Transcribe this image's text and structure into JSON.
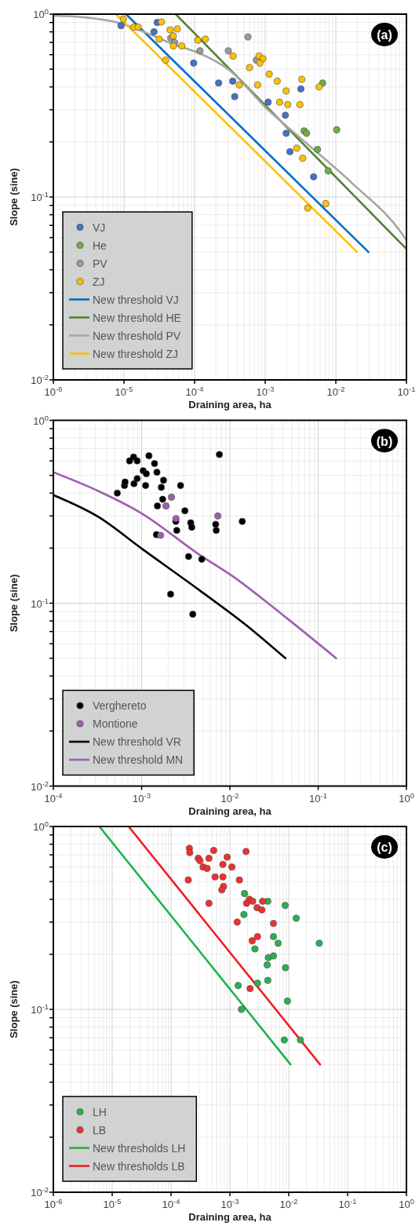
{
  "chart_data": [
    {
      "type": "scatter",
      "xlabel": "Draining area, ha",
      "ylabel": "Slope (sine)",
      "annotations": [
        "(a)"
      ],
      "log": "xy",
      "grid": true,
      "legend": "bottom left",
      "xlim": [
        1e-06,
        0.1
      ],
      "ylim": [
        0.01,
        1
      ],
      "xticks": [
        {
          "value": 1e-06,
          "label": "10$^{-6}$"
        },
        {
          "value": 1e-05,
          "label": "10$^{-5}$"
        },
        {
          "value": 0.0001,
          "label": "10$^{-4}$"
        },
        {
          "value": 0.001,
          "label": "10$^{-3}$"
        },
        {
          "value": 0.01,
          "label": "10$^{-2}$"
        },
        {
          "value": 0.1,
          "label": "10$^{-1}$"
        }
      ],
      "yticks": [
        {
          "value": 0.01,
          "label": "10$^{-2}$"
        },
        {
          "value": 0.02,
          "label": null
        },
        {
          "value": 0.03,
          "label": null
        },
        {
          "value": 0.04,
          "label": null
        },
        {
          "value": 0.05,
          "label": null
        },
        {
          "value": 0.06,
          "label": null
        },
        {
          "value": 0.07,
          "label": null
        },
        {
          "value": 0.08,
          "label": null
        },
        {
          "value": 0.09,
          "label": null
        },
        {
          "value": 0.1,
          "label": "10$^{-1}$"
        },
        {
          "value": 0.2,
          "label": null
        },
        {
          "value": 0.3,
          "label": null
        },
        {
          "value": 0.4,
          "label": null
        },
        {
          "value": 0.5,
          "label": null
        },
        {
          "value": 0.6,
          "label": null
        },
        {
          "value": 0.7,
          "label": null
        },
        {
          "value": 0.8,
          "label": null
        },
        {
          "value": 0.9,
          "label": null
        },
        {
          "value": 1,
          "label": "10$^{0}$"
        }
      ],
      "series": [
        {
          "name": "VJ",
          "marker": "circle",
          "color": "#4472c4",
          "x": [
            9.1e-06,
            2.95e-05,
            2.66e-05,
            9.7e-05,
            0.000219,
            0.000347,
            0.00037,
            0.0011,
            0.00193,
            0.00198,
            0.00224,
            0.0032,
            0.00485
          ],
          "values": [
            0.865,
            0.9,
            0.8,
            0.54,
            0.42,
            0.43,
            0.354,
            0.33,
            0.28,
            0.223,
            0.177,
            0.39,
            0.129
          ]
        },
        {
          "name": "He",
          "marker": "circle",
          "color": "#70ad47",
          "x": [
            0.00355,
            0.00385,
            0.0065,
            0.0103,
            0.0055,
            0.0078
          ],
          "values": [
            0.23,
            0.223,
            0.42,
            0.233,
            0.182,
            0.139
          ]
        },
        {
          "name": "PV",
          "marker": "circle",
          "color": "#9a9a9a",
          "x": [
            4.6e-05,
            5.2e-05,
            0.000119,
            0.0003,
            0.00057,
            0.00075
          ],
          "values": [
            0.74,
            0.7,
            0.63,
            0.63,
            0.75,
            0.56
          ]
        },
        {
          "name": "ZJ",
          "marker": "circle",
          "color": "#ffc000",
          "x": [
            9.8e-06,
            1.38e-05,
            1.59e-05,
            3.4e-05,
            3.15e-05,
            3.9e-05,
            4.5e-05,
            5.7e-05,
            5e-05,
            5e-05,
            6.6e-05,
            0.000111,
            0.000142,
            0.00035,
            0.00043,
            0.0006,
            0.00078,
            0.00082,
            0.00093,
            0.00084,
            0.00114,
            0.00148,
            0.0016,
            0.00198,
            0.00208,
            0.0031,
            0.0033,
            0.0058,
            0.0028,
            0.0034,
            0.004,
            0.0072
          ],
          "values": [
            0.94,
            0.85,
            0.85,
            0.906,
            0.73,
            0.56,
            0.82,
            0.83,
            0.76,
            0.67,
            0.67,
            0.72,
            0.73,
            0.59,
            0.41,
            0.51,
            0.41,
            0.59,
            0.57,
            0.54,
            0.47,
            0.43,
            0.33,
            0.38,
            0.32,
            0.32,
            0.44,
            0.4,
            0.185,
            0.163,
            0.087,
            0.092
          ]
        },
        {
          "name": "New threshold VJ",
          "type": "line",
          "color": "#0070c0",
          "x": [
            1.07e-05,
            0.029
          ],
          "values": [
            1,
            0.05
          ]
        },
        {
          "name": "New threshold HE",
          "type": "line",
          "color": "#548235",
          "x": [
            5.4e-05,
            0.1
          ],
          "values": [
            1,
            0.052
          ]
        },
        {
          "name": "New threshold PV",
          "type": "line",
          "color": "#a6a6a6",
          "x": [
            1e-06,
            2.8e-06,
            9e-06,
            2.24e-05,
            5.2e-05,
            0.000118,
            0.00032,
            0.001,
            0.00325,
            0.017,
            0.089,
            0.1
          ],
          "values": [
            0.98,
            0.96,
            0.89,
            0.78,
            0.68,
            0.61,
            0.49,
            0.31,
            0.208,
            0.119,
            0.062,
            0.058
          ]
        },
        {
          "name": "New threshold ZJ",
          "type": "line",
          "color": "#ffc000",
          "x": [
            7.7e-06,
            0.02
          ],
          "values": [
            1,
            0.05
          ]
        }
      ]
    },
    {
      "type": "scatter",
      "xlabel": "Draining area, ha",
      "ylabel": "Slope (sine)",
      "annotations": [
        "(b)"
      ],
      "log": "xy",
      "grid": true,
      "legend": "bottom left",
      "xlim": [
        0.0001,
        1
      ],
      "ylim": [
        0.01,
        1
      ],
      "xticks": [
        {
          "value": 0.0001,
          "label": "10$^{-4}$"
        },
        {
          "value": 0.001,
          "label": "10$^{-3}$"
        },
        {
          "value": 0.01,
          "label": "10$^{-2}$"
        },
        {
          "value": 0.1,
          "label": "10$^{-1}$"
        },
        {
          "value": 1,
          "label": "10$^{0}$"
        }
      ],
      "yticks": [
        {
          "value": 0.01,
          "label": "10$^{-2}$"
        },
        {
          "value": 0.02,
          "label": null
        },
        {
          "value": 0.03,
          "label": null
        },
        {
          "value": 0.04,
          "label": null
        },
        {
          "value": 0.05,
          "label": null
        },
        {
          "value": 0.06,
          "label": null
        },
        {
          "value": 0.07,
          "label": null
        },
        {
          "value": 0.08,
          "label": null
        },
        {
          "value": 0.09,
          "label": null
        },
        {
          "value": 0.1,
          "label": "10$^{-1}$"
        },
        {
          "value": 0.2,
          "label": null
        },
        {
          "value": 0.3,
          "label": null
        },
        {
          "value": 0.4,
          "label": null
        },
        {
          "value": 0.5,
          "label": null
        },
        {
          "value": 0.6,
          "label": null
        },
        {
          "value": 0.7,
          "label": null
        },
        {
          "value": 0.8,
          "label": null
        },
        {
          "value": 0.9,
          "label": null
        },
        {
          "value": 1,
          "label": "10$^{0}$"
        }
      ],
      "series": [
        {
          "name": "Verghereto",
          "marker": "circle",
          "color": "#000000",
          "x": [
            0.00053,
            0.00064,
            0.00065,
            0.00073,
            0.00081,
            0.00089,
            0.00082,
            0.00089,
            0.00104,
            0.00113,
            0.00111,
            0.00121,
            0.0014,
            0.00149,
            0.00177,
            0.00167,
            0.00173,
            0.00151,
            0.00276,
            0.0076,
            0.00309,
            0.00244,
            0.0025,
            0.0036,
            0.0037,
            0.0069,
            0.007,
            0.0138,
            0.00147,
            0.0034,
            0.0048,
            0.00213,
            0.0038
          ],
          "values": [
            0.4,
            0.44,
            0.46,
            0.6,
            0.63,
            0.6,
            0.45,
            0.48,
            0.53,
            0.51,
            0.44,
            0.64,
            0.58,
            0.52,
            0.47,
            0.43,
            0.37,
            0.34,
            0.44,
            0.65,
            0.32,
            0.28,
            0.25,
            0.275,
            0.26,
            0.27,
            0.25,
            0.28,
            0.237,
            0.18,
            0.174,
            0.112,
            0.087
          ]
        },
        {
          "name": "Montione",
          "marker": "circle",
          "color": "#9e5fb0",
          "x": [
            0.00218,
            0.00189,
            0.00245,
            0.0073,
            0.00164
          ],
          "values": [
            0.38,
            0.34,
            0.29,
            0.3,
            0.235
          ]
        },
        {
          "name": "New threshold VR",
          "type": "line",
          "color": "#000000",
          "x": [
            0.0001,
            0.000325,
            0.001,
            0.0046,
            0.0152,
            0.0425
          ],
          "values": [
            0.39,
            0.296,
            0.199,
            0.117,
            0.076,
            0.05
          ]
        },
        {
          "name": "New threshold MN",
          "type": "line",
          "color": "#9e5fb0",
          "x": [
            0.0001,
            0.000325,
            0.001,
            0.0046,
            0.0102,
            0.0425,
            0.16
          ],
          "values": [
            0.52,
            0.41,
            0.31,
            0.183,
            0.143,
            0.084,
            0.05
          ]
        }
      ]
    },
    {
      "type": "scatter",
      "xlabel": "Draining area, ha",
      "ylabel": "Slope (sine)",
      "annotations": [
        "(c)"
      ],
      "log": "xy",
      "grid": true,
      "legend": "bottom left",
      "xlim": [
        1e-06,
        1
      ],
      "ylim": [
        0.01,
        1
      ],
      "xticks": [
        {
          "value": 1e-06,
          "label": "10$^{-6}$"
        },
        {
          "value": 1e-05,
          "label": "10$^{-5}$"
        },
        {
          "value": 0.0001,
          "label": "10$^{-4}$"
        },
        {
          "value": 0.001,
          "label": "10$^{-3}$"
        },
        {
          "value": 0.01,
          "label": "10$^{-2}$"
        },
        {
          "value": 0.1,
          "label": "10$^{-1}$"
        },
        {
          "value": 1,
          "label": "10$^{0}$"
        }
      ],
      "yticks": [
        {
          "value": 0.01,
          "label": "10$^{-2}$"
        },
        {
          "value": 0.02,
          "label": null
        },
        {
          "value": 0.03,
          "label": null
        },
        {
          "value": 0.04,
          "label": null
        },
        {
          "value": 0.05,
          "label": null
        },
        {
          "value": 0.06,
          "label": null
        },
        {
          "value": 0.07,
          "label": null
        },
        {
          "value": 0.08,
          "label": null
        },
        {
          "value": 0.09,
          "label": null
        },
        {
          "value": 0.1,
          "label": "10$^{-1}$"
        },
        {
          "value": 0.2,
          "label": null
        },
        {
          "value": 0.3,
          "label": null
        },
        {
          "value": 0.4,
          "label": null
        },
        {
          "value": 0.5,
          "label": null
        },
        {
          "value": 0.6,
          "label": null
        },
        {
          "value": 0.7,
          "label": null
        },
        {
          "value": 0.8,
          "label": null
        },
        {
          "value": 0.9,
          "label": null
        },
        {
          "value": 1,
          "label": "10$^{0}$"
        }
      ],
      "series": [
        {
          "name": "LH",
          "marker": "circle",
          "color": "#2bb04f",
          "x": [
            0.00177,
            0.0044,
            0.0087,
            0.0134,
            0.00173,
            0.0055,
            0.0066,
            0.033,
            0.00266,
            0.0045,
            0.0055,
            0.0043,
            0.0088,
            0.0044,
            0.00294,
            0.00138,
            0.0095,
            0.00157,
            0.0084,
            0.0158
          ],
          "values": [
            0.43,
            0.39,
            0.37,
            0.315,
            0.33,
            0.25,
            0.23,
            0.23,
            0.214,
            0.192,
            0.196,
            0.175,
            0.169,
            0.144,
            0.139,
            0.135,
            0.111,
            0.1,
            0.068,
            0.068
          ]
        },
        {
          "name": "LB",
          "marker": "circle",
          "color": "#ee3030",
          "x": [
            0.000205,
            0.000208,
            0.000196,
            0.00029,
            0.00031,
            0.00035,
            0.00041,
            0.00044,
            0.00053,
            0.00056,
            0.00044,
            0.00076,
            0.00076,
            0.0009,
            0.00078,
            0.00073,
            0.00108,
            0.00145,
            0.00188,
            0.00192,
            0.00214,
            0.00244,
            0.0036,
            0.0029,
            0.0035,
            0.00133,
            0.0055,
            0.00239,
            0.00294,
            0.0022
          ],
          "values": [
            0.76,
            0.72,
            0.51,
            0.67,
            0.65,
            0.6,
            0.59,
            0.67,
            0.74,
            0.53,
            0.38,
            0.62,
            0.53,
            0.68,
            0.47,
            0.45,
            0.6,
            0.51,
            0.73,
            0.38,
            0.4,
            0.39,
            0.39,
            0.36,
            0.35,
            0.3,
            0.295,
            0.237,
            0.25,
            0.13
          ]
        },
        {
          "name": "New thresholds LH",
          "type": "line",
          "color": "#22b14c",
          "x": [
            6.05e-06,
            0.0107
          ],
          "values": [
            1,
            0.05
          ]
        },
        {
          "name": "New thresholds LB",
          "type": "line",
          "color": "#ed2024",
          "x": [
            1.9e-05,
            0.034
          ],
          "values": [
            1,
            0.05
          ]
        }
      ]
    }
  ]
}
